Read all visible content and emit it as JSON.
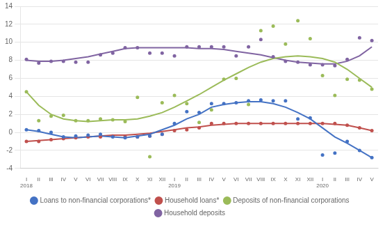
{
  "chart_data": {
    "type": "line",
    "categories": [
      "I",
      "II",
      "III",
      "IV",
      "V",
      "VI",
      "VII",
      "VIII",
      "IX",
      "X",
      "XI",
      "XII",
      "I",
      "II",
      "III",
      "IV",
      "V",
      "VI",
      "VII",
      "VIII",
      "IX",
      "X",
      "XI",
      "XII",
      "I",
      "II",
      "III",
      "IV",
      "V"
    ],
    "annotations": [
      {
        "x": 0,
        "text": "2018"
      },
      {
        "x": 12,
        "text": "2019"
      },
      {
        "x": 24,
        "text": "2020"
      }
    ],
    "ylim": [
      -4,
      14
    ],
    "yticks": [
      -4,
      -2,
      0,
      2,
      4,
      6,
      8,
      10,
      12,
      14
    ],
    "grid": true,
    "legend": "bottom",
    "series": [
      {
        "name": "Loans to non-financial corporations*",
        "color": "#4472C4",
        "type": "line",
        "values": [
          0.3,
          0.1,
          -0.2,
          -0.5,
          -0.6,
          -0.5,
          -0.4,
          -0.5,
          -0.6,
          -0.4,
          -0.2,
          0.3,
          0.8,
          1.5,
          2.0,
          2.8,
          3.1,
          3.3,
          3.4,
          3.4,
          3.2,
          2.8,
          2.2,
          1.5,
          0.5,
          -0.5,
          -1.2,
          -2.0,
          -2.8
        ]
      },
      {
        "name": "Household loans*",
        "color": "#C0504D",
        "type": "line",
        "values": [
          -1.0,
          -0.9,
          -0.8,
          -0.7,
          -0.6,
          -0.5,
          -0.4,
          -0.3,
          -0.3,
          -0.2,
          -0.1,
          0.1,
          0.3,
          0.5,
          0.6,
          0.8,
          0.9,
          1.0,
          1.0,
          1.0,
          1.0,
          1.0,
          1.0,
          1.0,
          1.0,
          0.9,
          0.8,
          0.5,
          0.2
        ]
      },
      {
        "name": "Deposits of non-financial corporations",
        "color": "#9BBB59",
        "type": "line",
        "values": [
          4.5,
          3.0,
          2.0,
          1.5,
          1.3,
          1.2,
          1.3,
          1.4,
          1.4,
          1.5,
          1.8,
          2.2,
          2.8,
          3.5,
          4.2,
          5.0,
          5.8,
          6.5,
          7.2,
          7.8,
          8.2,
          8.4,
          8.5,
          8.4,
          8.2,
          7.8,
          7.0,
          6.0,
          5.0
        ]
      },
      {
        "name": "Household deposits",
        "color": "#8064A2",
        "type": "line",
        "values": [
          8.0,
          7.9,
          7.9,
          8.0,
          8.2,
          8.4,
          8.7,
          9.0,
          9.3,
          9.4,
          9.4,
          9.4,
          9.4,
          9.4,
          9.3,
          9.3,
          9.2,
          9.0,
          8.8,
          8.6,
          8.3,
          8.0,
          7.8,
          7.7,
          7.6,
          7.6,
          7.9,
          8.5,
          9.5
        ]
      },
      {
        "color": "#4472C4",
        "type": "scatter",
        "marker": "circle",
        "values": [
          0.3,
          0.2,
          0.0,
          -0.5,
          -0.4,
          -0.3,
          -0.2,
          -0.5,
          -0.6,
          -0.5,
          -0.4,
          -0.2,
          1.0,
          2.3,
          2.2,
          3.2,
          3.2,
          3.3,
          3.5,
          3.6,
          3.5,
          3.5,
          1.5,
          1.6,
          -2.5,
          -2.3,
          -1.0,
          -2.0,
          -2.8
        ]
      },
      {
        "color": "#C0504D",
        "type": "scatter",
        "marker": "circle",
        "values": [
          -1.0,
          -1.0,
          -0.8,
          -0.7,
          -0.6,
          -0.5,
          -0.5,
          -0.4,
          -0.5,
          -0.5,
          -0.4,
          -0.2,
          0.2,
          0.3,
          0.5,
          1.0,
          1.0,
          1.0,
          1.0,
          1.0,
          1.0,
          1.0,
          1.0,
          1.0,
          1.0,
          1.0,
          0.8,
          0.5,
          0.2
        ]
      },
      {
        "color": "#9BBB59",
        "type": "scatter",
        "marker": "circle",
        "values": [
          4.5,
          1.3,
          1.8,
          1.9,
          1.3,
          1.3,
          1.5,
          1.4,
          1.2,
          3.9,
          -2.7,
          3.3,
          4.1,
          3.2,
          1.1,
          2.5,
          5.9,
          6.0,
          3.1,
          11.3,
          11.8,
          9.8,
          12.4,
          10.4,
          6.3,
          4.1,
          5.9,
          5.8,
          4.8
        ]
      },
      {
        "color": "#8064A2",
        "type": "scatter",
        "marker": "circle",
        "values": [
          8.1,
          7.7,
          7.9,
          7.9,
          7.8,
          7.8,
          8.6,
          8.8,
          9.4,
          9.4,
          8.8,
          8.8,
          8.5,
          9.5,
          9.5,
          9.5,
          9.5,
          8.5,
          9.5,
          10.3,
          8.4,
          7.9,
          7.8,
          7.5,
          7.5,
          7.4,
          8.1,
          10.5,
          10.2
        ]
      }
    ]
  }
}
